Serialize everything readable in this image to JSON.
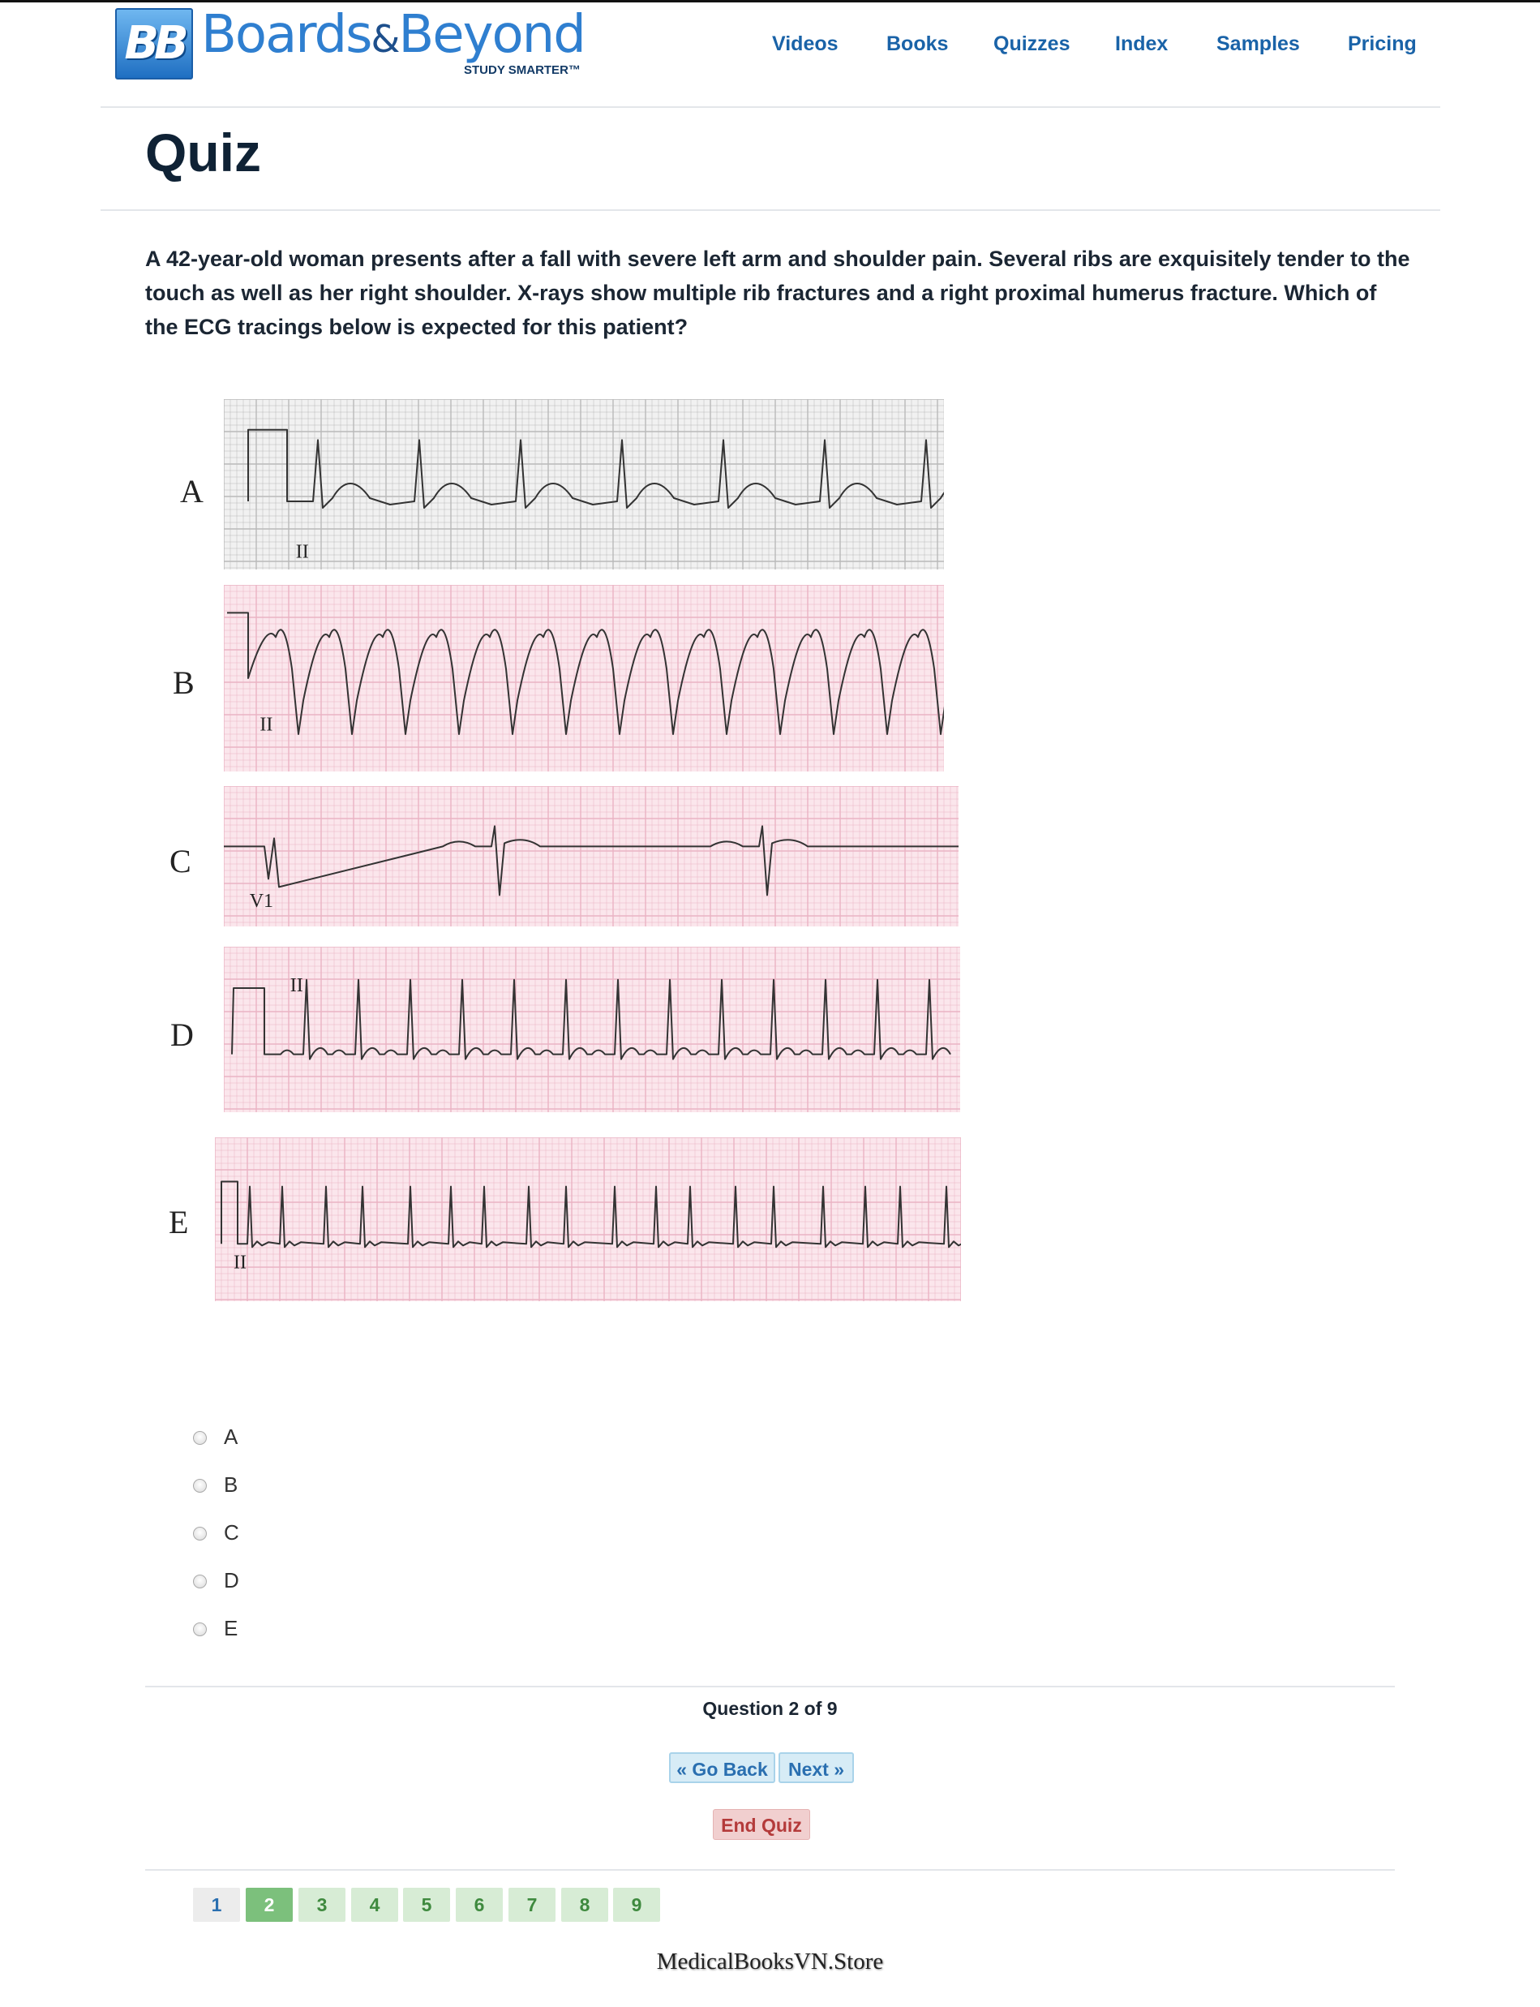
{
  "header": {
    "logo_badge": "BB",
    "brand_first": "Boards",
    "brand_amp": "&",
    "brand_second": "Beyond",
    "tagline": "STUDY SMARTER™",
    "nav": [
      "Videos",
      "Books",
      "Quizzes",
      "Index",
      "Samples",
      "Pricing"
    ]
  },
  "page": {
    "title": "Quiz"
  },
  "question": {
    "text": "A 42-year-old woman presents after a fall with severe left arm and shoulder pain. Several ribs are exquisitely tender to the touch as well as her right shoulder. X-rays show multiple rib fractures and a right proximal humerus fracture. Which of the ECG tracings below is expected for this patient?"
  },
  "figure": {
    "strips": [
      {
        "label": "A",
        "lead": "II",
        "paper": "#f1f1f1",
        "grid": "#b9b9b9"
      },
      {
        "label": "B",
        "lead": "II",
        "paper": "#fbe6ec",
        "grid": "#eab3c3"
      },
      {
        "label": "C",
        "lead": "V1",
        "paper": "#fbe6ec",
        "grid": "#eab3c3"
      },
      {
        "label": "D",
        "lead": "II",
        "paper": "#fbe6ec",
        "grid": "#eab3c3"
      },
      {
        "label": "E",
        "lead": "II",
        "paper": "#fbe6ec",
        "grid": "#eab3c3"
      }
    ]
  },
  "options": [
    "A",
    "B",
    "C",
    "D",
    "E"
  ],
  "progress": {
    "text": "Question 2 of 9",
    "current": 2,
    "total": 9
  },
  "buttons": {
    "back": "« Go Back",
    "next": "Next »",
    "end": "End Quiz"
  },
  "pager": [
    "1",
    "2",
    "3",
    "4",
    "5",
    "6",
    "7",
    "8",
    "9"
  ],
  "footer": {
    "watermark": "MedicalBooksVN.Store"
  },
  "colors": {
    "accent": "#1a63a8",
    "title": "#0f2235",
    "current_page": "#7cc07c",
    "end_button": "#f1cfcf"
  }
}
